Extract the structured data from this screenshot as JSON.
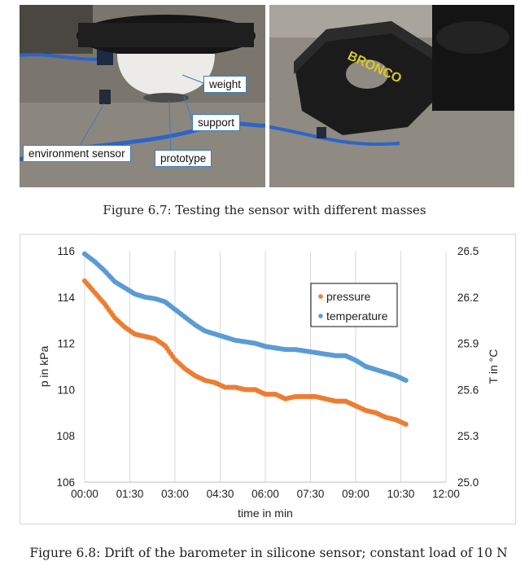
{
  "figure1": {
    "caption": "Figure 6.7: Testing the sensor with different masses",
    "labels": {
      "weight": "weight",
      "support": "support",
      "environment_sensor": "environment sensor",
      "prototype": "prototype"
    },
    "plate_text": "BRONCO"
  },
  "figure2": {
    "caption": "Figure 6.8: Drift of the barometer in silicone sensor; constant load of 10 N"
  },
  "colors": {
    "pressure": "#ed7d31",
    "temperature": "#5b9bd5",
    "callout_border": "#3a7bc0"
  },
  "chart_data": {
    "type": "scatter",
    "xlabel": "time in min",
    "ylabel": "p in kPa",
    "y2label": "T in °C",
    "x_ticks": [
      "00:00",
      "01:30",
      "03:00",
      "04:30",
      "06:00",
      "07:30",
      "09:00",
      "10:30",
      "12:00"
    ],
    "xlim": [
      0,
      720
    ],
    "y_ticks": [
      "106",
      "108",
      "110",
      "112",
      "114",
      "116"
    ],
    "ylim": [
      106,
      116
    ],
    "y2_ticks": [
      "25.0",
      "25.3",
      "25.6",
      "25.9",
      "26.2",
      "26.5"
    ],
    "y2lim": [
      25.0,
      26.5
    ],
    "grid": "vertical",
    "legend_position": "top-right",
    "series": [
      {
        "name": "pressure",
        "axis": "left",
        "x": [
          0,
          20,
          40,
          60,
          80,
          100,
          120,
          140,
          160,
          180,
          200,
          220,
          240,
          260,
          280,
          300,
          320,
          340,
          360,
          380,
          400,
          420,
          440,
          460,
          480,
          500,
          520,
          540,
          560,
          580,
          600,
          620,
          640
        ],
        "y": [
          114.7,
          114.2,
          113.7,
          113.1,
          112.7,
          112.4,
          112.3,
          112.2,
          111.9,
          111.3,
          110.9,
          110.6,
          110.4,
          110.3,
          110.1,
          110.1,
          110.0,
          110.0,
          109.8,
          109.8,
          109.6,
          109.7,
          109.7,
          109.7,
          109.6,
          109.5,
          109.5,
          109.3,
          109.1,
          109.0,
          108.8,
          108.7,
          108.5
        ]
      },
      {
        "name": "temperature",
        "axis": "right",
        "x": [
          0,
          20,
          40,
          60,
          80,
          100,
          120,
          140,
          160,
          180,
          200,
          220,
          240,
          260,
          280,
          300,
          320,
          340,
          360,
          380,
          400,
          420,
          440,
          460,
          480,
          500,
          520,
          540,
          560,
          580,
          600,
          620,
          640
        ],
        "y": [
          26.48,
          26.43,
          26.37,
          26.3,
          26.26,
          26.22,
          26.2,
          26.19,
          26.17,
          26.12,
          26.07,
          26.02,
          25.98,
          25.96,
          25.94,
          25.92,
          25.91,
          25.9,
          25.88,
          25.87,
          25.86,
          25.86,
          25.85,
          25.84,
          25.83,
          25.82,
          25.82,
          25.79,
          25.75,
          25.73,
          25.71,
          25.69,
          25.66
        ]
      }
    ]
  }
}
